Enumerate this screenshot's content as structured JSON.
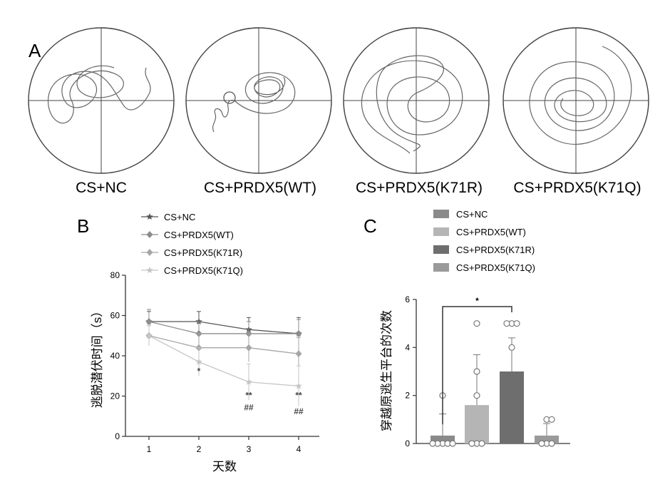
{
  "panels": {
    "a": {
      "letter": "A",
      "groups": [
        "CS+NC",
        "CS+PRDX5(WT)",
        "CS+PRDX5(K71R)",
        "CS+PRDX5(K71Q)"
      ]
    },
    "b": {
      "letter": "B"
    },
    "c": {
      "letter": "C"
    }
  },
  "colors": {
    "CS+NC": "#555555",
    "CS+PRDX5(WT)": "#8c8c8c",
    "CS+PRDX5(K71R)": "#a6a6a6",
    "CS+PRDX5(K71Q)": "#c6c6c6",
    "bar_CS+NC": "#8a8a8a",
    "bar_CS+PRDX5(WT)": "#b5b5b5",
    "bar_CS+PRDX5(K71R)": "#6e6e6e",
    "bar_CS+PRDX5(K71Q)": "#9a9a9a"
  },
  "chart_data": [
    {
      "type": "line",
      "panel": "B",
      "x": [
        1,
        2,
        3,
        4
      ],
      "xticks": [
        "1",
        "2",
        "3",
        "4"
      ],
      "xlabel": "天数",
      "ylabel": "逃脱潜伏时间（s）",
      "ylim": [
        0,
        80
      ],
      "yticks": [
        "0",
        "20",
        "40",
        "60",
        "80"
      ],
      "legend_position": "top",
      "series": [
        {
          "name": "CS+NC",
          "values": [
            57,
            57,
            53,
            51
          ],
          "errors": [
            5,
            5,
            6,
            8
          ]
        },
        {
          "name": "CS+PRDX5(WT)",
          "values": [
            57,
            51,
            51,
            51
          ],
          "errors": [
            6,
            6,
            6,
            7
          ]
        },
        {
          "name": "CS+PRDX5(K71R)",
          "values": [
            50,
            44,
            44,
            41
          ],
          "errors": [
            5,
            7,
            7,
            8
          ]
        },
        {
          "name": "CS+PRDX5(K71Q)",
          "values": [
            50,
            37,
            27,
            25
          ],
          "errors": [
            5,
            7,
            9,
            10
          ]
        }
      ],
      "annotations": [
        {
          "x": 2,
          "y": 31,
          "text": "*"
        },
        {
          "x": 3,
          "y": 19,
          "text": "**"
        },
        {
          "x": 3,
          "y": 13,
          "text": "##"
        },
        {
          "x": 4,
          "y": 19,
          "text": "**"
        },
        {
          "x": 4,
          "y": 11,
          "text": "##"
        }
      ]
    },
    {
      "type": "bar",
      "panel": "C",
      "categories": [
        "CS+NC",
        "CS+PRDX5(WT)",
        "CS+PRDX5(K71R)",
        "CS+PRDX5(K71Q)"
      ],
      "values": [
        0.33,
        1.6,
        3.0,
        0.33
      ],
      "errors": [
        0.9,
        2.1,
        1.4,
        0.5
      ],
      "points": [
        [
          2,
          0,
          0,
          0,
          0,
          0
        ],
        [
          5,
          3,
          2,
          0,
          0,
          0
        ],
        [
          5,
          5,
          5,
          4
        ],
        [
          1,
          1,
          0,
          0,
          0
        ]
      ],
      "ylabel": "穿越原逃生平台的次数",
      "ylim": [
        0,
        6
      ],
      "yticks": [
        "0",
        "2",
        "4",
        "6"
      ],
      "legend_position": "top",
      "significance": {
        "from": "CS+NC",
        "to": "CS+PRDX5(K71R)",
        "text": "*"
      }
    }
  ]
}
